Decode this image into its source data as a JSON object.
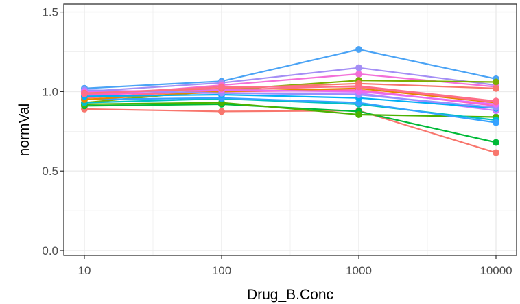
{
  "chart_data": {
    "type": "line",
    "xlabel": "Drug_B.Conc",
    "ylabel": "normVal",
    "x_scale": "log10",
    "x": [
      10,
      100,
      1000,
      10000
    ],
    "x_tick_labels": [
      "10",
      "100",
      "1000",
      "10000"
    ],
    "ylim": [
      -0.03,
      1.55
    ],
    "y_ticks": [
      0.0,
      0.5,
      1.0,
      1.5
    ],
    "y_tick_labels": [
      "0.0",
      "0.5",
      "1.0",
      "1.5"
    ],
    "grid": true,
    "legend": "none",
    "series": [
      {
        "color": "#4aa3f5",
        "values": [
          1.02,
          1.065,
          1.265,
          1.08
        ]
      },
      {
        "color": "#a48ef5",
        "values": [
          1.0,
          1.055,
          1.15,
          1.04
        ]
      },
      {
        "color": "#f36fd8",
        "values": [
          0.97,
          1.04,
          1.11,
          1.03
        ]
      },
      {
        "color": "#7cae00",
        "values": [
          0.93,
          1.01,
          1.07,
          1.06
        ]
      },
      {
        "color": "#f8766d",
        "values": [
          0.89,
          0.875,
          0.88,
          0.615
        ]
      },
      {
        "color": "#00ba38",
        "values": [
          0.91,
          0.92,
          0.875,
          0.68
        ]
      },
      {
        "color": "#4bb200",
        "values": [
          0.92,
          0.93,
          0.855,
          0.84
        ]
      },
      {
        "color": "#00bfc4",
        "values": [
          0.93,
          0.955,
          0.92,
          0.82
        ]
      },
      {
        "color": "#35a2ff",
        "values": [
          0.95,
          0.96,
          0.93,
          0.805
        ]
      },
      {
        "color": "#c77cff",
        "values": [
          0.99,
          0.99,
          0.99,
          0.88
        ]
      },
      {
        "color": "#ff61c3",
        "values": [
          0.98,
          1.0,
          1.01,
          0.91
        ]
      },
      {
        "color": "#fd6f86",
        "values": [
          0.96,
          1.01,
          1.035,
          0.94
        ]
      },
      {
        "color": "#e58700",
        "values": [
          0.95,
          1.0,
          1.02,
          0.93
        ]
      },
      {
        "color": "#00b0f6",
        "values": [
          0.97,
          0.98,
          0.96,
          0.895
        ]
      },
      {
        "color": "#9590ff",
        "values": [
          1.01,
          0.99,
          0.98,
          0.9
        ]
      },
      {
        "color": "#e76bf3",
        "values": [
          1.0,
          1.01,
          1.0,
          0.92
        ]
      },
      {
        "color": "#f8766d",
        "values": [
          0.99,
          1.02,
          1.05,
          1.02
        ]
      },
      {
        "color": "#fe6e8a",
        "values": [
          0.985,
          1.03,
          1.03,
          0.935
        ]
      }
    ]
  }
}
